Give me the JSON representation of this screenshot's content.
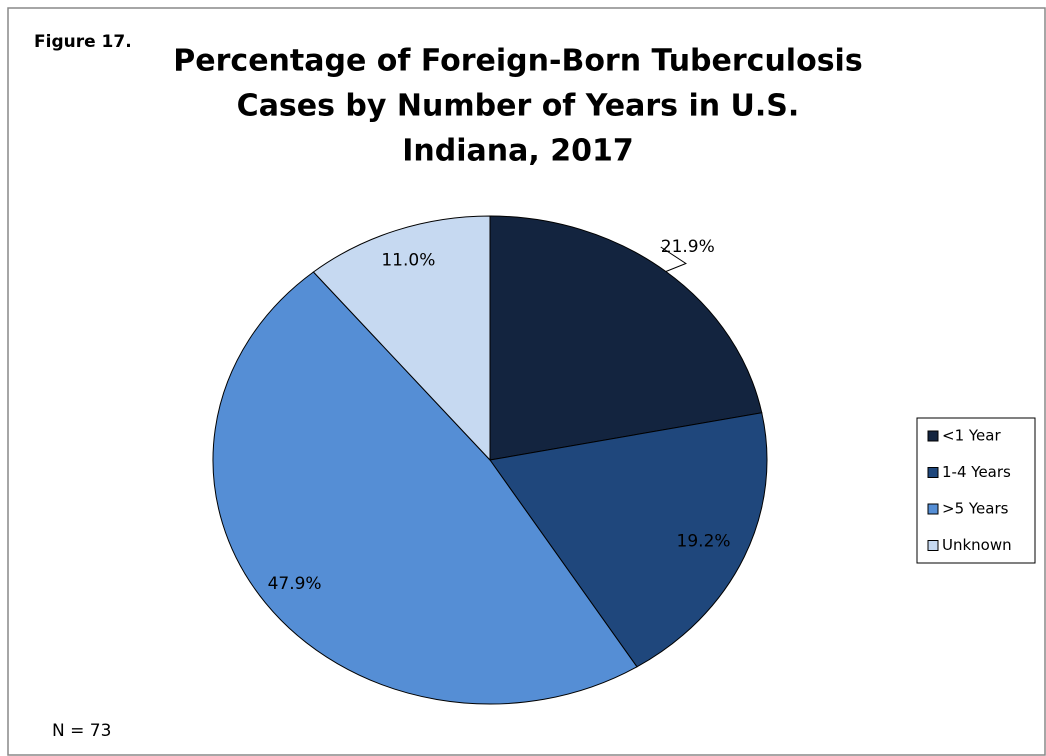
{
  "chart_data": {
    "type": "pie",
    "figure_label": "Figure 17.",
    "title": [
      "Percentage of Foreign-Born Tuberculosis",
      "Cases by Number of Years in U.S.",
      "Indiana, 2017"
    ],
    "categories": [
      "<1 Year",
      "1-4 Years",
      ">5 Years",
      "Unknown"
    ],
    "values": [
      21.9,
      19.2,
      47.9,
      11.0
    ],
    "value_labels": [
      "21.9%",
      "19.2%",
      "47.9%",
      "11.0%"
    ],
    "colors": [
      "#13243f",
      "#1f477c",
      "#558ed5",
      "#c6d9f1"
    ],
    "legend": "right",
    "note": "N = 73"
  }
}
